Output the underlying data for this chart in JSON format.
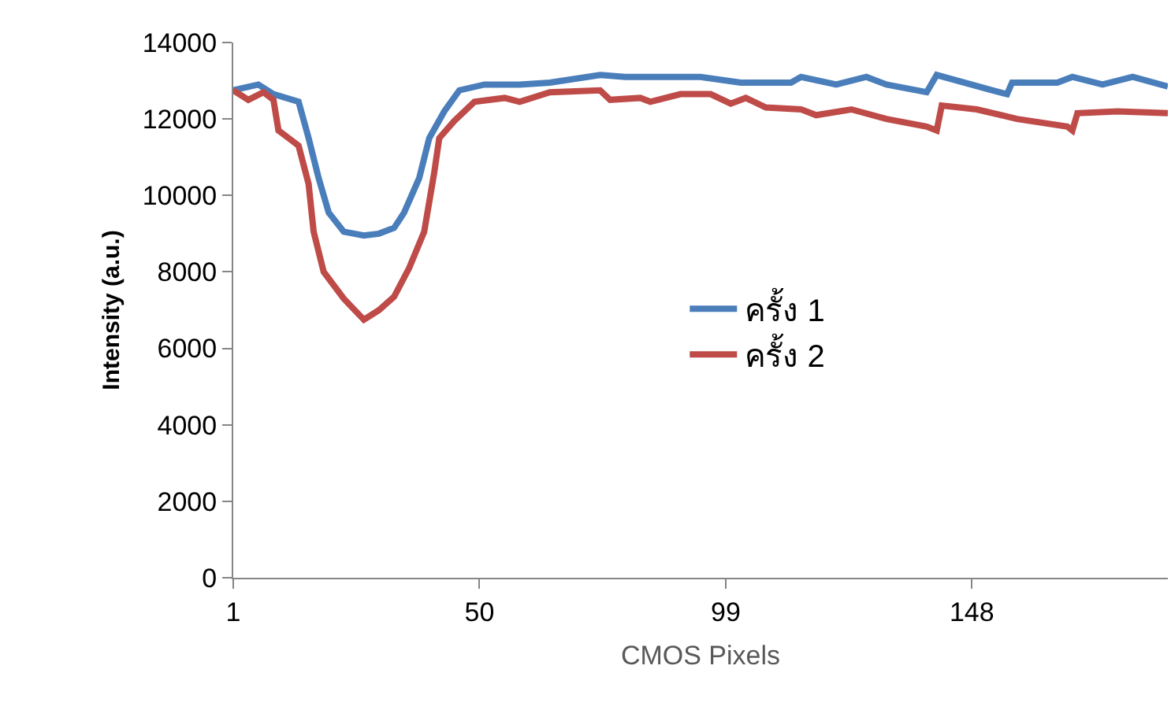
{
  "chart_data": {
    "type": "line",
    "xlabel": "CMOS Pixels",
    "ylabel": "Intensity (a.u.)",
    "xlim": [
      1,
      187
    ],
    "xticks": [
      1,
      50,
      99,
      148
    ],
    "ylim": [
      0,
      14000
    ],
    "yticks": [
      0,
      2000,
      4000,
      6000,
      8000,
      10000,
      12000,
      14000
    ],
    "grid": false,
    "legend": "right",
    "marker": "none",
    "line_style": "solid",
    "series": [
      {
        "name": "ครั้ง 1",
        "color": "#4a7ebb",
        "x": [
          1,
          6,
          9,
          14,
          16,
          18,
          20,
          23,
          27,
          30,
          33,
          35,
          38,
          40,
          43,
          46,
          51,
          58,
          64,
          74,
          79,
          94,
          102,
          112,
          114,
          121,
          127,
          131,
          139,
          141,
          152,
          155,
          156,
          165,
          168,
          174,
          180,
          187
        ],
        "values": [
          12750,
          12900,
          12650,
          12450,
          11500,
          10450,
          9550,
          9050,
          8950,
          9000,
          9150,
          9550,
          10450,
          11500,
          12200,
          12750,
          12900,
          12900,
          12950,
          13150,
          13100,
          13100,
          12950,
          12950,
          13100,
          12900,
          13100,
          12900,
          12700,
          13150,
          12750,
          12650,
          12950,
          12950,
          13100,
          12900,
          13100,
          12850
        ]
      },
      {
        "name": "ครั้ง 2",
        "color": "#be4b48",
        "x": [
          1,
          4,
          7,
          9,
          10,
          12,
          14,
          16,
          17,
          19,
          23,
          27,
          30,
          33,
          36,
          39,
          41,
          42,
          45,
          49,
          55,
          58,
          64,
          74,
          76,
          82,
          84,
          90,
          96,
          100,
          103,
          107,
          114,
          117,
          124,
          131,
          139,
          141,
          142,
          149,
          157,
          167,
          168,
          169,
          177,
          187
        ],
        "values": [
          12750,
          12500,
          12700,
          12500,
          11700,
          11500,
          11300,
          10300,
          9050,
          8000,
          7300,
          6750,
          7000,
          7350,
          8100,
          9050,
          10600,
          11500,
          11950,
          12450,
          12550,
          12450,
          12700,
          12750,
          12500,
          12550,
          12450,
          12650,
          12650,
          12400,
          12550,
          12300,
          12250,
          12100,
          12250,
          12000,
          11800,
          11700,
          12350,
          12250,
          12000,
          11800,
          11700,
          12150,
          12200,
          12150
        ]
      }
    ]
  }
}
